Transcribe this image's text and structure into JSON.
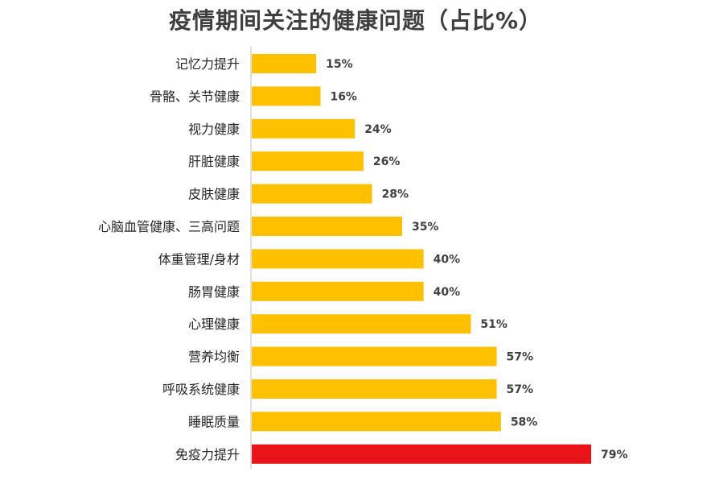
{
  "chart_data": {
    "type": "bar",
    "orientation": "horizontal",
    "title": "疫情期间关注的健康问题（占比%）",
    "categories": [
      "记忆力提升",
      "骨骼、关节健康",
      "视力健康",
      "肝脏健康",
      "皮肤健康",
      "心脑血管健康、三高问题",
      "体重管理/身材",
      "肠胃健康",
      "心理健康",
      "营养均衡",
      "呼吸系统健康",
      "睡眠质量",
      "免疫力提升"
    ],
    "values": [
      15,
      16,
      24,
      26,
      28,
      35,
      40,
      40,
      51,
      57,
      57,
      58,
      79
    ],
    "value_labels": [
      "15%",
      "16%",
      "24%",
      "26%",
      "28%",
      "35%",
      "40%",
      "40%",
      "51%",
      "57%",
      "57%",
      "58%",
      "79%"
    ],
    "xlim": [
      0,
      79
    ],
    "grid": false,
    "colors": {
      "bar": "#FFC000",
      "highlight_bar": "#E8141A",
      "axis": "#BFBFBF"
    },
    "highlight_index": 12
  }
}
